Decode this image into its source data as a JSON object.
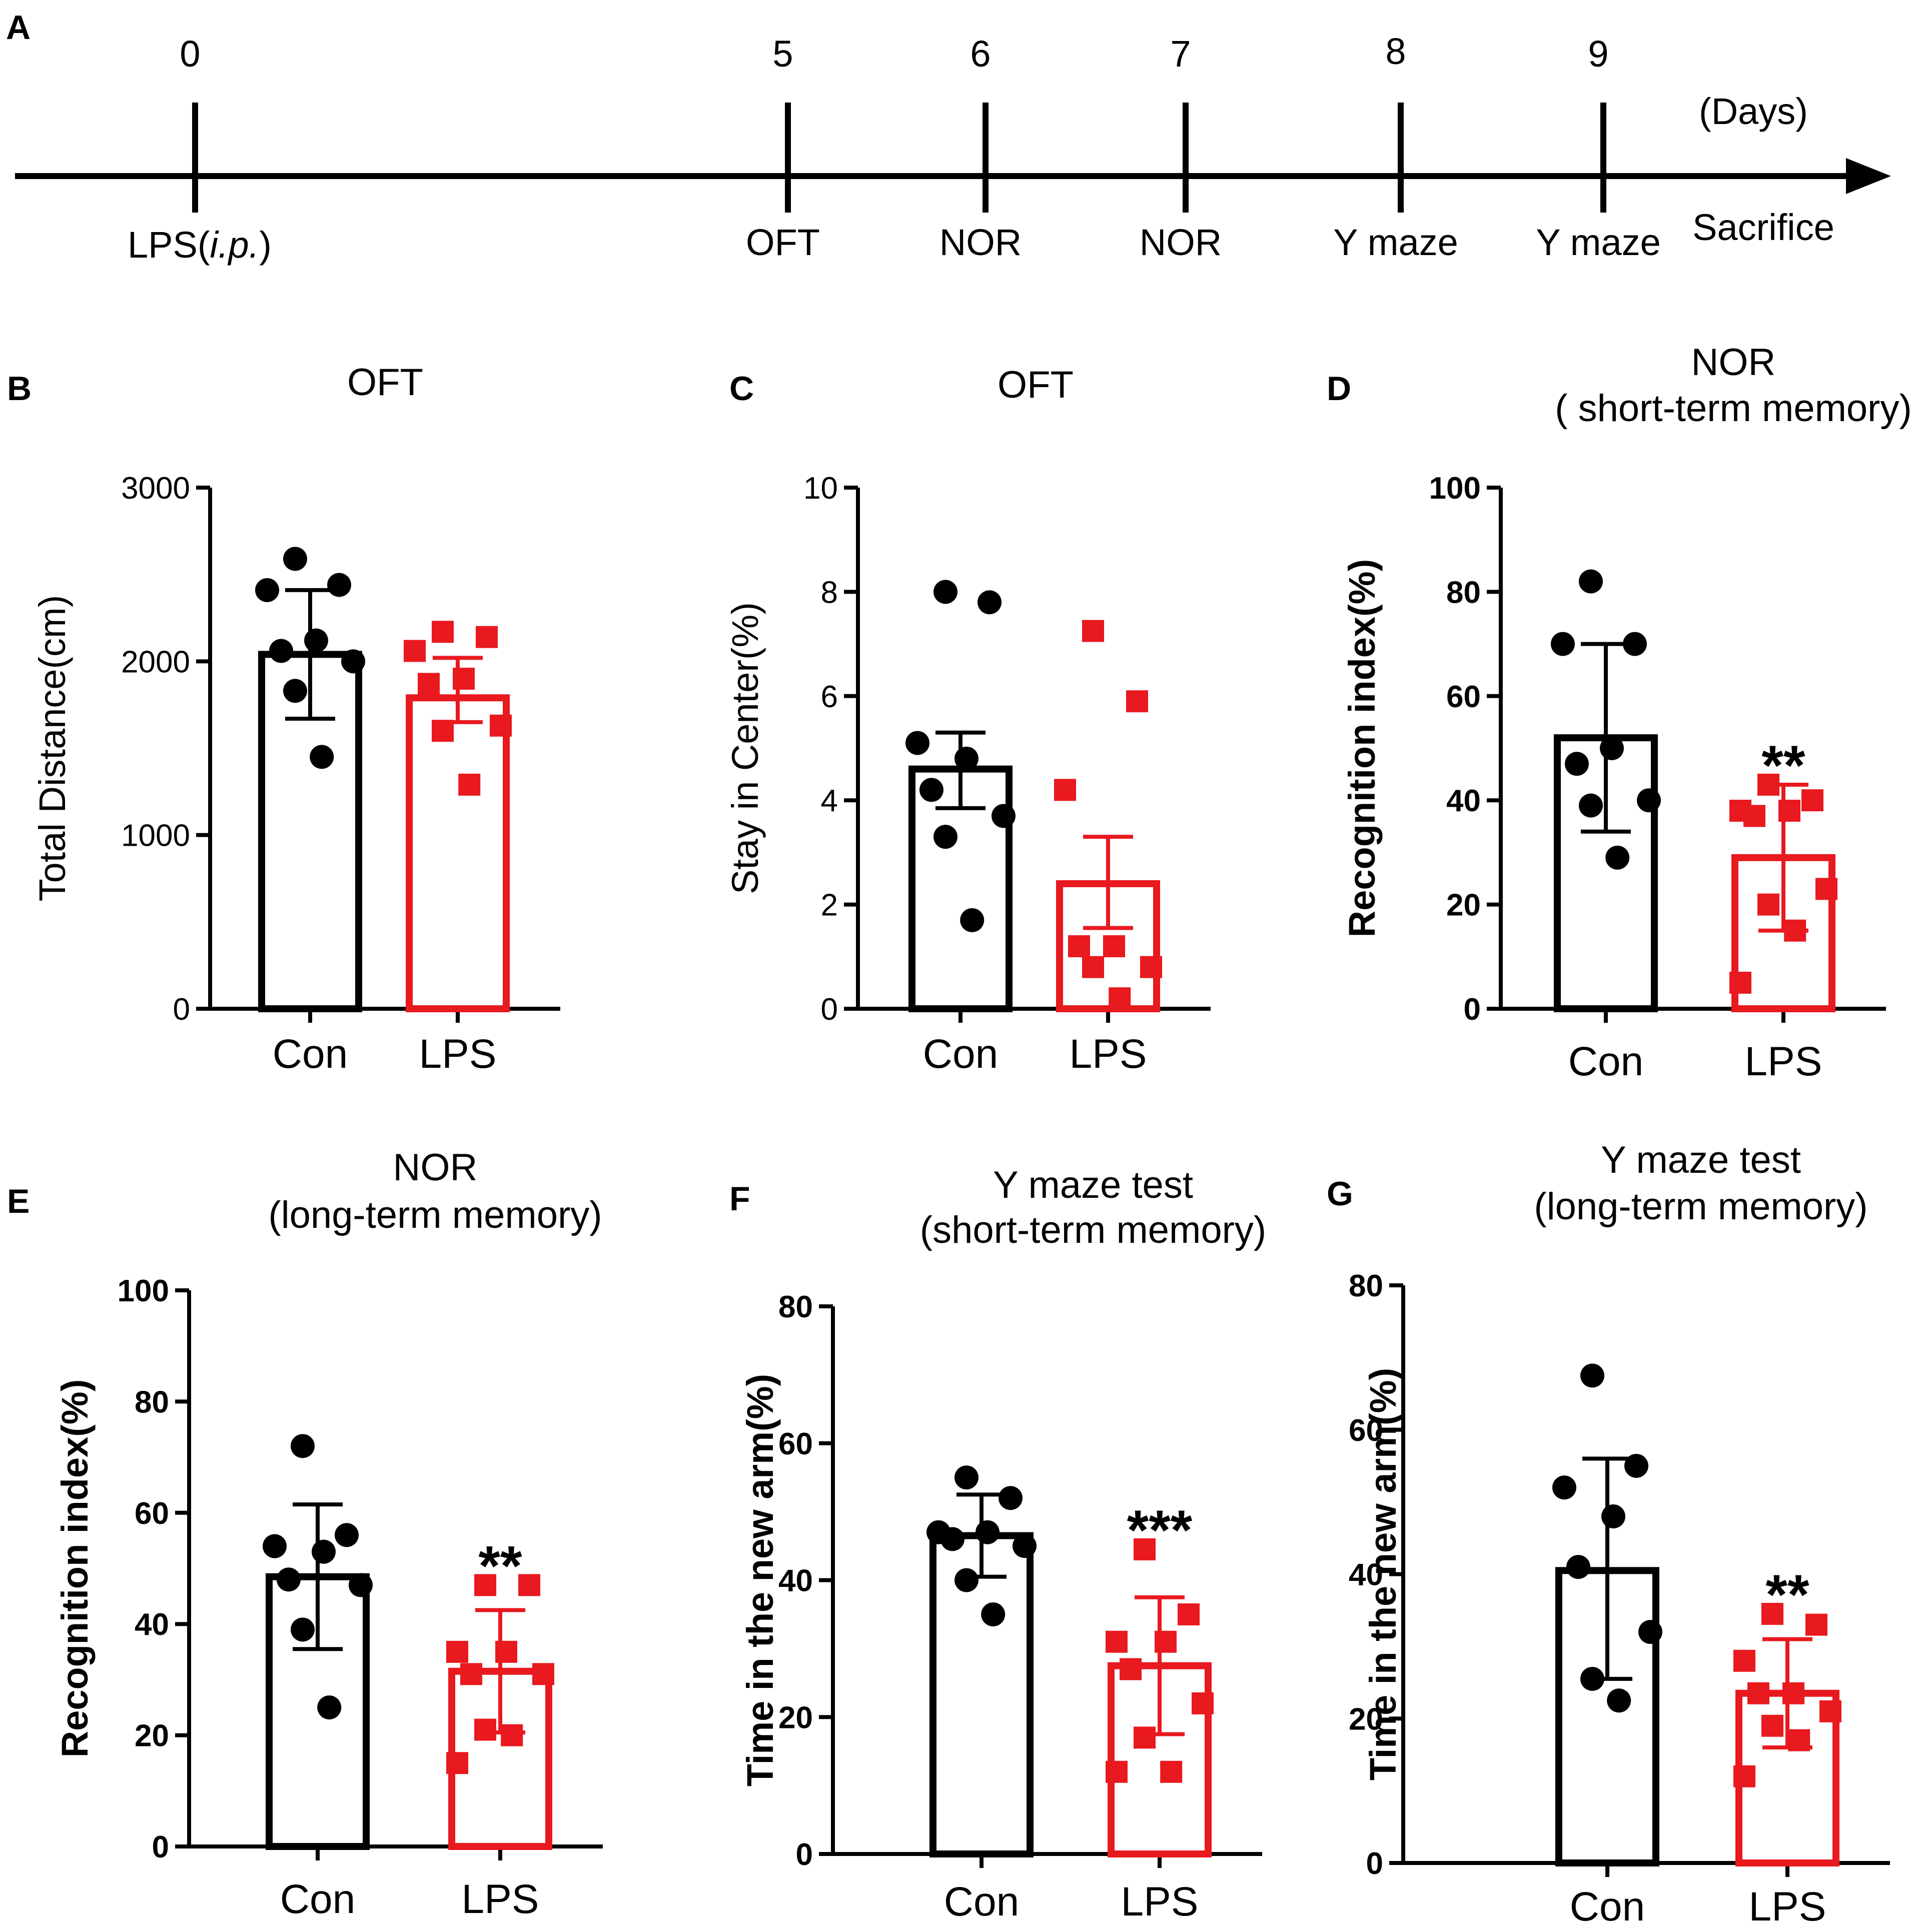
{
  "colors": {
    "con": "#000000",
    "lps": "#e8191f",
    "axis": "#000000"
  },
  "timeline": {
    "letter": "A",
    "unit_label": "(Days)",
    "end_label": "Sacrifice",
    "events": [
      {
        "day": "0",
        "below": "LPS(",
        "below_italic": "i.p.",
        "below_close": ")"
      },
      {
        "day": "5",
        "below": "OFT"
      },
      {
        "day": "6",
        "below": "NOR"
      },
      {
        "day": "7",
        "below": "NOR"
      },
      {
        "day": "8",
        "below": "Y maze"
      },
      {
        "day": "9",
        "below": "Y maze"
      }
    ]
  },
  "chart_data": [
    {
      "panel": "B",
      "type": "bar",
      "title": [
        "OFT"
      ],
      "ylabel": "Total Distance(cm)",
      "ylim": [
        0,
        3000
      ],
      "yticks": [
        0,
        1000,
        2000,
        3000
      ],
      "categories": [
        "Con",
        "LPS"
      ],
      "significance": "",
      "series": [
        {
          "name": "Con",
          "mean": 2040,
          "err_low": 1670,
          "err_high": 2410,
          "points": [
            2590,
            2440,
            2410,
            2120,
            2060,
            2000,
            1830,
            1450
          ]
        },
        {
          "name": "LPS",
          "mean": 1790,
          "err_low": 1650,
          "err_high": 2020,
          "points": [
            2170,
            2140,
            2060,
            1900,
            1870,
            1630,
            1600,
            1290
          ]
        }
      ]
    },
    {
      "panel": "C",
      "type": "bar",
      "title": [
        "OFT"
      ],
      "ylabel": "Stay in Center(%)",
      "ylim": [
        0,
        10
      ],
      "yticks": [
        0,
        2,
        4,
        6,
        8,
        10
      ],
      "categories": [
        "Con",
        "LPS"
      ],
      "significance": "",
      "series": [
        {
          "name": "Con",
          "mean": 4.6,
          "err_low": 3.85,
          "err_high": 5.3,
          "points": [
            8.0,
            7.8,
            5.1,
            4.8,
            4.2,
            3.7,
            3.3,
            1.7
          ]
        },
        {
          "name": "LPS",
          "mean": 2.4,
          "err_low": 1.55,
          "err_high": 3.3,
          "points": [
            7.25,
            5.9,
            4.2,
            1.2,
            1.2,
            0.8,
            0.8,
            0.2
          ]
        }
      ]
    },
    {
      "panel": "D",
      "type": "bar",
      "title": [
        "NOR",
        "( short-term memory)"
      ],
      "bold_axis": true,
      "ylabel": "Recognition index(%)",
      "ylim": [
        0,
        100
      ],
      "yticks": [
        0,
        20,
        40,
        60,
        80,
        100
      ],
      "categories": [
        "Con",
        "LPS"
      ],
      "significance": "**",
      "series": [
        {
          "name": "Con",
          "mean": 52,
          "err_low": 34,
          "err_high": 70,
          "points": [
            82,
            70,
            70,
            50,
            47,
            40,
            39,
            29
          ]
        },
        {
          "name": "LPS",
          "mean": 29,
          "err_low": 15,
          "err_high": 43,
          "points": [
            43,
            40,
            38,
            38,
            37,
            23,
            20,
            15,
            5
          ]
        }
      ]
    },
    {
      "panel": "E",
      "type": "bar",
      "title": [
        "NOR",
        "(long-term memory)"
      ],
      "bold_axis": true,
      "ylabel": "Recognition index(%)",
      "ylim": [
        0,
        100
      ],
      "yticks": [
        0,
        20,
        40,
        60,
        80,
        100
      ],
      "categories": [
        "Con",
        "LPS"
      ],
      "significance": "**",
      "series": [
        {
          "name": "Con",
          "mean": 48.5,
          "err_low": 35.5,
          "err_high": 61.5,
          "points": [
            72,
            56,
            54,
            53,
            48,
            47,
            39,
            25
          ]
        },
        {
          "name": "LPS",
          "mean": 31.5,
          "err_low": 20.5,
          "err_high": 42.5,
          "points": [
            47,
            47,
            35,
            35,
            31,
            31,
            21,
            20,
            15
          ]
        }
      ]
    },
    {
      "panel": "F",
      "type": "bar",
      "title": [
        "Y maze test",
        "(short-term memory)"
      ],
      "bold_axis": true,
      "ylabel": "Time in the new arm(%)",
      "ylim": [
        0,
        80
      ],
      "yticks": [
        0,
        20,
        40,
        60,
        80
      ],
      "categories": [
        "Con",
        "LPS"
      ],
      "significance": "***",
      "series": [
        {
          "name": "Con",
          "mean": 46.5,
          "err_low": 40.5,
          "err_high": 52.5,
          "points": [
            55,
            52,
            47,
            47,
            46,
            45,
            40,
            35
          ]
        },
        {
          "name": "LPS",
          "mean": 27.5,
          "err_low": 17.5,
          "err_high": 37.5,
          "points": [
            44.5,
            35,
            31,
            31,
            27,
            22,
            17,
            12,
            12
          ]
        }
      ]
    },
    {
      "panel": "G",
      "type": "bar",
      "title": [
        "Y maze test",
        "(long-term memory)"
      ],
      "bold_axis": true,
      "ylabel": "Time in the new arm(%)",
      "ylim": [
        0,
        80
      ],
      "yticks": [
        0,
        20,
        40,
        60,
        80
      ],
      "categories": [
        "Con",
        "LPS"
      ],
      "significance": "**",
      "series": [
        {
          "name": "Con",
          "mean": 40.5,
          "err_low": 25.5,
          "err_high": 56,
          "points": [
            67.5,
            55,
            52,
            48,
            41,
            32,
            25.5,
            22.5
          ]
        },
        {
          "name": "LPS",
          "mean": 23.5,
          "err_low": 16,
          "err_high": 31,
          "points": [
            34.5,
            33,
            28,
            23.5,
            23.5,
            21,
            19,
            17,
            12
          ]
        }
      ]
    }
  ]
}
